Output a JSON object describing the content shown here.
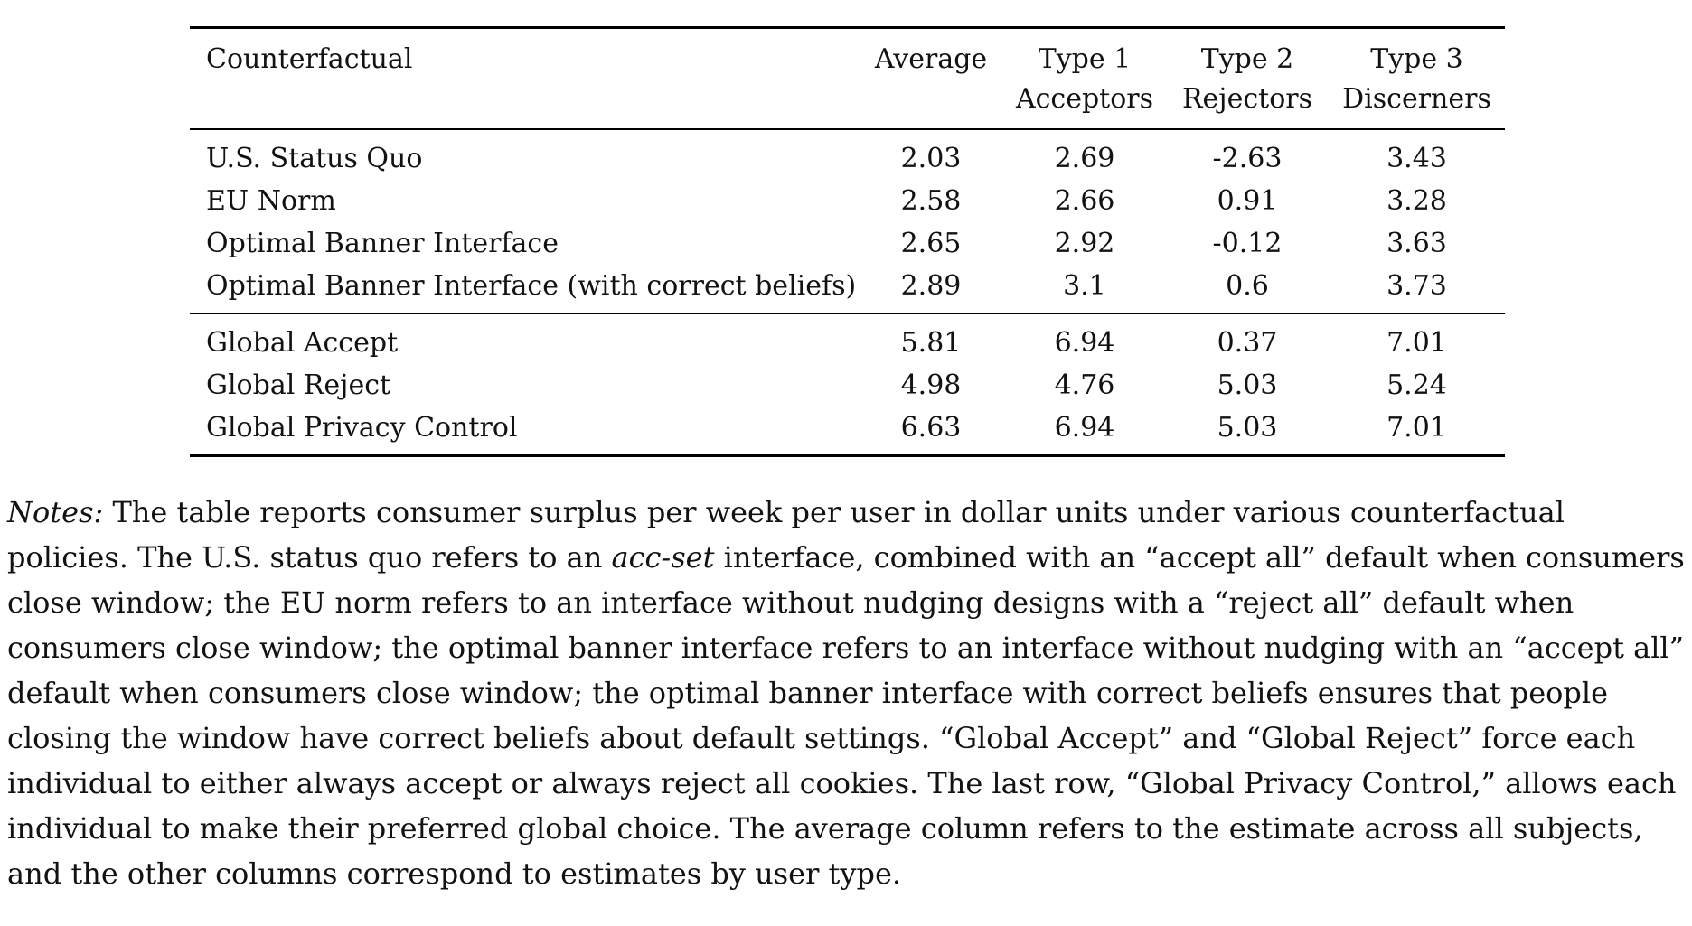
{
  "table": {
    "columns": [
      {
        "line1": "Counterfactual",
        "line2": ""
      },
      {
        "line1": "Average",
        "line2": ""
      },
      {
        "line1": "Type 1",
        "line2": "Acceptors"
      },
      {
        "line1": "Type 2",
        "line2": "Rejectors"
      },
      {
        "line1": "Type 3",
        "line2": "Discerners"
      }
    ],
    "groups": [
      {
        "rows": [
          {
            "label": "U.S. Status Quo",
            "values": [
              "2.03",
              "2.69",
              "-2.63",
              "3.43"
            ]
          },
          {
            "label": "EU Norm",
            "values": [
              "2.58",
              "2.66",
              "0.91",
              "3.28"
            ]
          },
          {
            "label": "Optimal Banner Interface",
            "values": [
              "2.65",
              "2.92",
              "-0.12",
              "3.63"
            ]
          },
          {
            "label": "Optimal Banner Interface (with correct beliefs)",
            "values": [
              "2.89",
              "3.1",
              "0.6",
              "3.73"
            ]
          }
        ]
      },
      {
        "rows": [
          {
            "label": "Global Accept",
            "values": [
              "5.81",
              "6.94",
              "0.37",
              "7.01"
            ]
          },
          {
            "label": "Global Reject",
            "values": [
              "4.98",
              "4.76",
              "5.03",
              "5.24"
            ]
          },
          {
            "label": "Global Privacy Control",
            "values": [
              "6.63",
              "6.94",
              "5.03",
              "7.01"
            ]
          }
        ]
      }
    ]
  },
  "notes": {
    "segments": [
      {
        "text": "Notes:",
        "italic": true
      },
      {
        "text": " The table reports consumer surplus per week per user in dollar units under various counterfactual policies. The U.S. status quo refers to an ",
        "italic": false
      },
      {
        "text": "acc-set",
        "italic": true
      },
      {
        "text": " interface, combined with an “accept all” default when consumers close window; the EU norm refers to an interface without nudging designs with a “reject all” default when consumers close window; the optimal banner interface refers to an interface without nudging with an “accept all” default when consumers close window; the optimal banner interface with correct beliefs ensures that people closing the window have correct beliefs about default settings. “Global Accept” and “Global Reject” force each individual to either always accept or always reject all cookies. The last row, “Global Privacy Control,” allows each individual to make their preferred global choice. The average column refers to the estimate across all subjects, and the other columns correspond to estimates by user type.",
        "italic": false
      }
    ]
  },
  "colors": {
    "text": "#121212",
    "rule": "#000000",
    "background": "#ffffff"
  }
}
